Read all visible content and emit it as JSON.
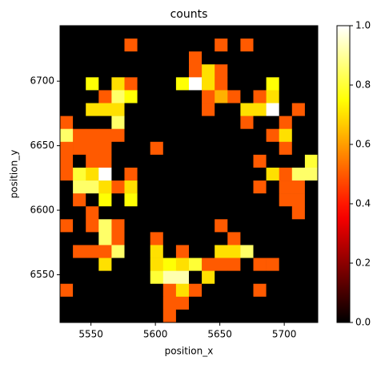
{
  "chart_data": {
    "type": "heatmap",
    "title": "counts",
    "xlabel": "position_x",
    "ylabel": "position_y",
    "colormap": "hot",
    "x": [
      5531,
      5541,
      5551,
      5561,
      5571,
      5581,
      5591,
      5601,
      5611,
      5621,
      5631,
      5641,
      5651,
      5661,
      5671,
      5681,
      5691,
      5701,
      5711,
      5721
    ],
    "y": [
      6738,
      6728,
      6718,
      6708,
      6698,
      6688,
      6678,
      6668,
      6658,
      6648,
      6638,
      6628,
      6618,
      6608,
      6598,
      6588,
      6578,
      6568,
      6558,
      6548,
      6538,
      6528,
      6518
    ],
    "values": [
      [
        0,
        0,
        0,
        0,
        0,
        0,
        0,
        0,
        0,
        0,
        0,
        0,
        0,
        0,
        0,
        0,
        0,
        0,
        0,
        0
      ],
      [
        0,
        0,
        0,
        0,
        0,
        0.5,
        0,
        0,
        0,
        0,
        0,
        0,
        0.5,
        0,
        0.5,
        0,
        0,
        0,
        0,
        0
      ],
      [
        0,
        0,
        0,
        0,
        0,
        0,
        0,
        0,
        0,
        0,
        0.5,
        0,
        0,
        0,
        0,
        0,
        0,
        0,
        0,
        0
      ],
      [
        0,
        0,
        0,
        0,
        0,
        0,
        0,
        0,
        0,
        0,
        0.5,
        0.7,
        0.5,
        0,
        0,
        0,
        0,
        0,
        0,
        0
      ],
      [
        0,
        0,
        0.75,
        0,
        0.7,
        0.5,
        0,
        0,
        0,
        0.75,
        1,
        0.7,
        0.5,
        0,
        0,
        0,
        0.75,
        0,
        0,
        0
      ],
      [
        0,
        0,
        0,
        0.5,
        0.85,
        0.75,
        0,
        0,
        0,
        0,
        0,
        0.5,
        0.63,
        0.5,
        0,
        0.5,
        0.7,
        0,
        0,
        0
      ],
      [
        0,
        0,
        0.7,
        0.7,
        0.7,
        0,
        0,
        0,
        0,
        0,
        0,
        0.5,
        0,
        0,
        0.7,
        0.7,
        1,
        0,
        0.5,
        0
      ],
      [
        0.5,
        0,
        0,
        0,
        0.85,
        0,
        0,
        0,
        0,
        0,
        0,
        0,
        0,
        0,
        0.5,
        0,
        0,
        0.5,
        0,
        0
      ],
      [
        0.85,
        0.5,
        0.5,
        0.5,
        0.5,
        0,
        0,
        0,
        0,
        0,
        0,
        0,
        0,
        0,
        0,
        0,
        0.5,
        0.7,
        0,
        0
      ],
      [
        0.5,
        0.5,
        0.5,
        0.5,
        0,
        0,
        0,
        0.5,
        0,
        0,
        0,
        0,
        0,
        0,
        0,
        0,
        0,
        0.5,
        0,
        0
      ],
      [
        0.5,
        0,
        0.5,
        0.5,
        0,
        0,
        0,
        0,
        0,
        0,
        0,
        0,
        0,
        0,
        0,
        0.5,
        0,
        0,
        0,
        0.8
      ],
      [
        0.5,
        0.8,
        0.7,
        1,
        0,
        0.5,
        0,
        0,
        0,
        0,
        0,
        0,
        0,
        0,
        0,
        0,
        0.7,
        0.5,
        0.85,
        0.85
      ],
      [
        0,
        0.85,
        0.85,
        0.7,
        0.5,
        0.7,
        0,
        0,
        0,
        0,
        0,
        0,
        0,
        0,
        0,
        0.5,
        0,
        0.5,
        0.5,
        0
      ],
      [
        0,
        0.5,
        0,
        0.75,
        0,
        0.75,
        0,
        0,
        0,
        0,
        0,
        0,
        0,
        0,
        0,
        0,
        0,
        0.5,
        0.5,
        0
      ],
      [
        0,
        0,
        0.5,
        0,
        0,
        0,
        0,
        0,
        0,
        0,
        0,
        0,
        0,
        0,
        0,
        0,
        0,
        0,
        0.5,
        0
      ],
      [
        0.5,
        0,
        0.5,
        0.85,
        0.5,
        0,
        0,
        0,
        0,
        0,
        0,
        0,
        0.5,
        0,
        0,
        0,
        0,
        0,
        0,
        0
      ],
      [
        0,
        0,
        0,
        0.85,
        0.5,
        0,
        0,
        0.5,
        0,
        0,
        0,
        0,
        0,
        0.5,
        0,
        0,
        0,
        0,
        0,
        0
      ],
      [
        0,
        0.5,
        0.5,
        0.5,
        0.85,
        0,
        0,
        0.7,
        0,
        0.5,
        0,
        0,
        0.7,
        0.7,
        0.85,
        0,
        0,
        0,
        0,
        0
      ],
      [
        0,
        0,
        0,
        0.7,
        0,
        0,
        0,
        0.7,
        0.75,
        0.7,
        0.8,
        0.5,
        0.5,
        0.5,
        0,
        0.5,
        0.5,
        0,
        0,
        0
      ],
      [
        0,
        0,
        0,
        0,
        0,
        0,
        0,
        0.8,
        0.92,
        0.92,
        0,
        0.7,
        0,
        0,
        0,
        0,
        0,
        0,
        0,
        0
      ],
      [
        0.5,
        0,
        0,
        0,
        0,
        0,
        0,
        0,
        0.5,
        0.7,
        0.5,
        0,
        0,
        0,
        0,
        0.5,
        0,
        0,
        0,
        0
      ],
      [
        0,
        0,
        0,
        0,
        0,
        0,
        0,
        0,
        0.5,
        0.5,
        0,
        0,
        0,
        0,
        0,
        0,
        0,
        0,
        0,
        0
      ],
      [
        0,
        0,
        0,
        0,
        0,
        0,
        0,
        0,
        0.5,
        0,
        0,
        0,
        0,
        0,
        0,
        0,
        0,
        0,
        0,
        0
      ]
    ],
    "xlim": [
      5526,
      5726
    ],
    "ylim": [
      6513,
      6743
    ],
    "xticks": [
      5550,
      5600,
      5650,
      5700
    ],
    "yticks": [
      6550,
      6600,
      6650,
      6700
    ],
    "clim": [
      0,
      1
    ],
    "cticks": [
      {
        "value": 0,
        "label": "0.0"
      },
      {
        "value": 0.2,
        "label": "0.2"
      },
      {
        "value": 0.4,
        "label": "0.4"
      },
      {
        "value": 0.6,
        "label": "0.6"
      },
      {
        "value": 0.8,
        "label": "0.8"
      },
      {
        "value": 1,
        "label": "1.0"
      }
    ]
  }
}
